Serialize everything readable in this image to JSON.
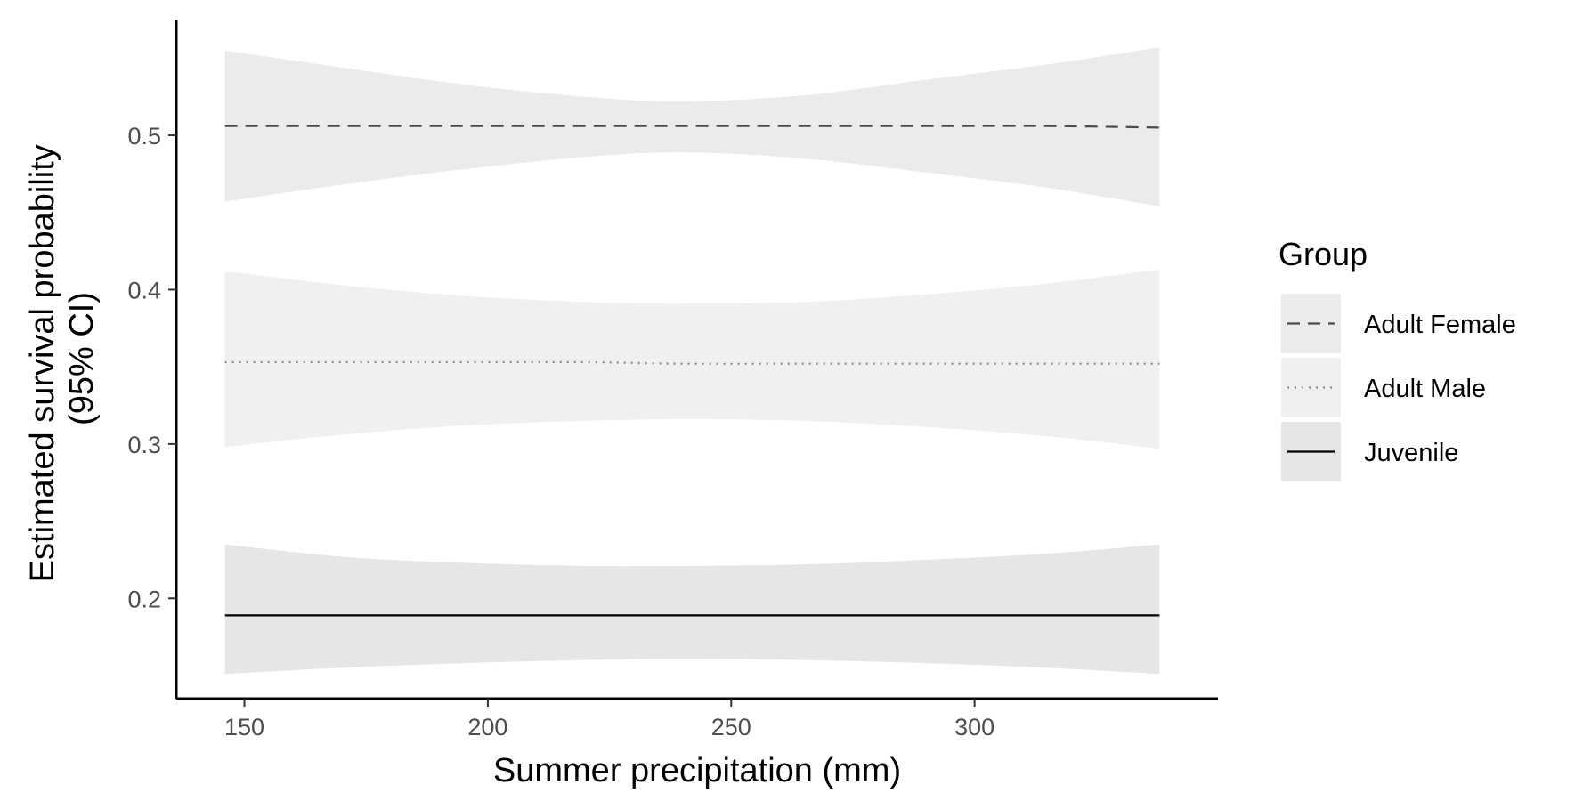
{
  "chart_data": {
    "type": "line",
    "title": "",
    "xlabel": "Summer precipitation (mm)",
    "ylabel_lines": [
      "Estimated survival probability",
      "(95% CI)"
    ],
    "xlim": [
      136,
      350
    ],
    "ylim": [
      0.135,
      0.575
    ],
    "x_ticks": [
      150,
      200,
      250,
      300
    ],
    "x_tick_labels": [
      "150",
      "200",
      "250",
      "300"
    ],
    "y_ticks": [
      0.2,
      0.3,
      0.4,
      0.5
    ],
    "y_tick_labels": [
      "0.2",
      "0.3",
      "0.4",
      "0.5"
    ],
    "grid": false,
    "legend": {
      "title": "Group",
      "position": "right"
    },
    "x": [
      146,
      170,
      195,
      220,
      240,
      265,
      290,
      315,
      338
    ],
    "series": [
      {
        "name": "Adult Female",
        "linetype": "dashed",
        "color": "#4a4a4a",
        "ribbon_fill": "#ebebeb",
        "estimate": [
          0.506,
          0.506,
          0.506,
          0.506,
          0.506,
          0.506,
          0.506,
          0.506,
          0.505
        ],
        "lower": [
          0.457,
          0.468,
          0.478,
          0.486,
          0.489,
          0.485,
          0.476,
          0.466,
          0.454
        ],
        "upper": [
          0.555,
          0.544,
          0.533,
          0.525,
          0.522,
          0.526,
          0.536,
          0.546,
          0.557
        ]
      },
      {
        "name": "Adult Male",
        "linetype": "dotted",
        "color": "#8a8a8a",
        "ribbon_fill": "#f0f0f0",
        "estimate": [
          0.353,
          0.353,
          0.353,
          0.353,
          0.352,
          0.352,
          0.352,
          0.352,
          0.352
        ],
        "lower": [
          0.298,
          0.306,
          0.312,
          0.315,
          0.316,
          0.315,
          0.311,
          0.305,
          0.297
        ],
        "upper": [
          0.412,
          0.403,
          0.396,
          0.392,
          0.391,
          0.392,
          0.397,
          0.404,
          0.413
        ]
      },
      {
        "name": "Juvenile",
        "linetype": "solid",
        "color": "#000000",
        "ribbon_fill": "#e6e6e6",
        "estimate": [
          0.189,
          0.189,
          0.189,
          0.189,
          0.189,
          0.189,
          0.189,
          0.189,
          0.189
        ],
        "lower": [
          0.151,
          0.155,
          0.158,
          0.16,
          0.161,
          0.16,
          0.158,
          0.155,
          0.151
        ],
        "upper": [
          0.235,
          0.227,
          0.223,
          0.221,
          0.221,
          0.222,
          0.225,
          0.229,
          0.235
        ]
      }
    ]
  }
}
